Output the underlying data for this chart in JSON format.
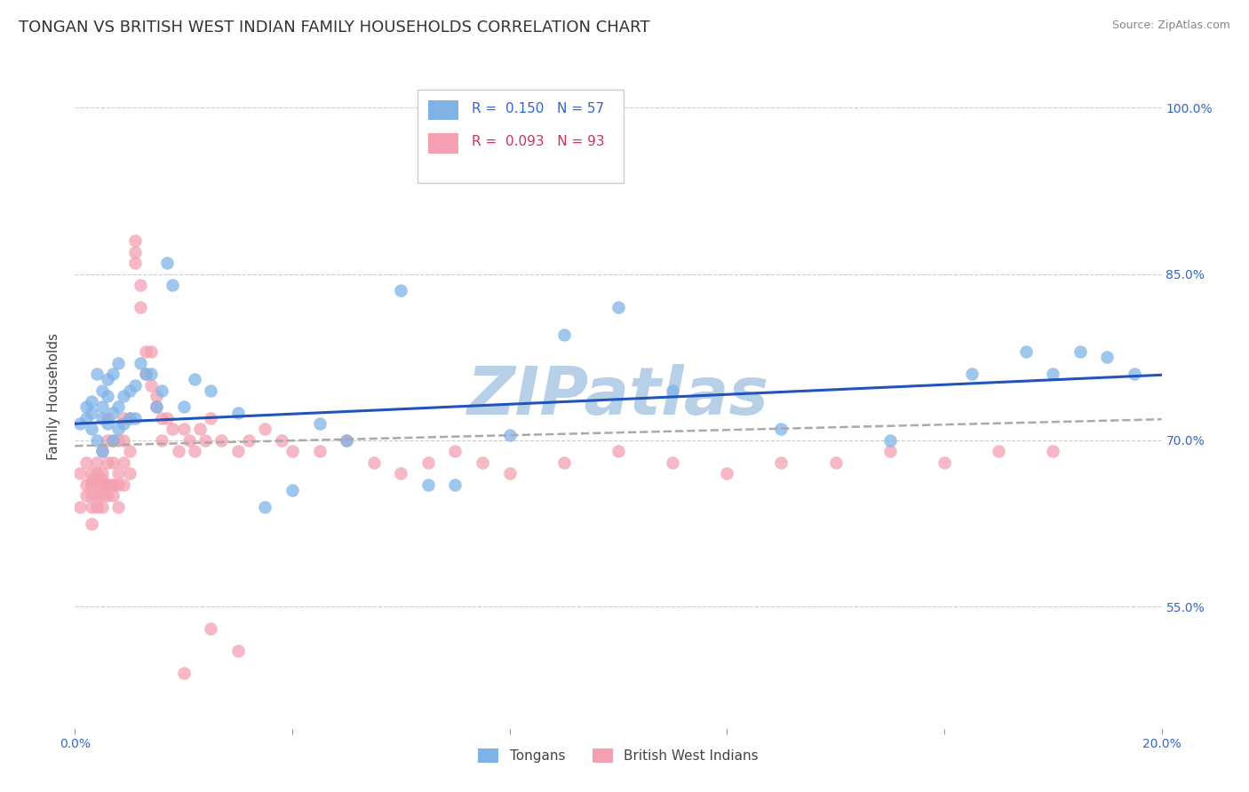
{
  "title": "TONGAN VS BRITISH WEST INDIAN FAMILY HOUSEHOLDS CORRELATION CHART",
  "source": "Source: ZipAtlas.com",
  "ylabel": "Family Households",
  "ytick_labels": [
    "55.0%",
    "70.0%",
    "85.0%",
    "100.0%"
  ],
  "ytick_values": [
    0.55,
    0.7,
    0.85,
    1.0
  ],
  "xlim": [
    0.0,
    0.2
  ],
  "ylim": [
    0.44,
    1.04
  ],
  "background_color": "#ffffff",
  "watermark_text": "ZIPatlas",
  "watermark_color": "#b8cfe8",
  "blue_color": "#7fb3e8",
  "pink_color": "#f4a0b0",
  "blue_line_color": "#2255bb",
  "pink_line_color": "#cc3355",
  "title_fontsize": 13,
  "axis_label_fontsize": 11,
  "tick_fontsize": 10,
  "legend_label_blue": "Tongans",
  "legend_label_pink": "British West Indians",
  "R_blue": 0.15,
  "N_blue": 57,
  "R_pink": 0.093,
  "N_pink": 93,
  "tongans_x": [
    0.001,
    0.002,
    0.002,
    0.003,
    0.003,
    0.003,
    0.004,
    0.004,
    0.005,
    0.005,
    0.005,
    0.005,
    0.006,
    0.006,
    0.006,
    0.007,
    0.007,
    0.007,
    0.008,
    0.008,
    0.008,
    0.009,
    0.009,
    0.01,
    0.01,
    0.011,
    0.011,
    0.012,
    0.013,
    0.014,
    0.015,
    0.016,
    0.017,
    0.018,
    0.02,
    0.022,
    0.025,
    0.03,
    0.035,
    0.04,
    0.045,
    0.05,
    0.06,
    0.065,
    0.07,
    0.08,
    0.09,
    0.1,
    0.11,
    0.13,
    0.15,
    0.165,
    0.175,
    0.18,
    0.185,
    0.19,
    0.195
  ],
  "tongans_y": [
    0.715,
    0.72,
    0.73,
    0.71,
    0.725,
    0.735,
    0.7,
    0.76,
    0.69,
    0.72,
    0.745,
    0.73,
    0.715,
    0.74,
    0.755,
    0.7,
    0.725,
    0.76,
    0.71,
    0.73,
    0.77,
    0.715,
    0.74,
    0.72,
    0.745,
    0.72,
    0.75,
    0.77,
    0.76,
    0.76,
    0.73,
    0.745,
    0.86,
    0.84,
    0.73,
    0.755,
    0.745,
    0.725,
    0.64,
    0.655,
    0.715,
    0.7,
    0.835,
    0.66,
    0.66,
    0.705,
    0.795,
    0.82,
    0.745,
    0.71,
    0.7,
    0.76,
    0.78,
    0.76,
    0.78,
    0.775,
    0.76
  ],
  "bwi_x": [
    0.001,
    0.001,
    0.002,
    0.002,
    0.002,
    0.003,
    0.003,
    0.003,
    0.003,
    0.003,
    0.003,
    0.004,
    0.004,
    0.004,
    0.004,
    0.004,
    0.005,
    0.005,
    0.005,
    0.005,
    0.005,
    0.005,
    0.006,
    0.006,
    0.006,
    0.006,
    0.006,
    0.006,
    0.007,
    0.007,
    0.007,
    0.007,
    0.007,
    0.008,
    0.008,
    0.008,
    0.008,
    0.009,
    0.009,
    0.009,
    0.009,
    0.01,
    0.01,
    0.01,
    0.011,
    0.011,
    0.011,
    0.012,
    0.012,
    0.013,
    0.013,
    0.014,
    0.014,
    0.015,
    0.015,
    0.016,
    0.016,
    0.017,
    0.018,
    0.019,
    0.02,
    0.021,
    0.022,
    0.023,
    0.024,
    0.025,
    0.027,
    0.03,
    0.032,
    0.035,
    0.038,
    0.04,
    0.045,
    0.05,
    0.055,
    0.06,
    0.065,
    0.07,
    0.075,
    0.08,
    0.09,
    0.1,
    0.11,
    0.12,
    0.13,
    0.14,
    0.15,
    0.16,
    0.17,
    0.18,
    0.03,
    0.025,
    0.02
  ],
  "bwi_y": [
    0.64,
    0.67,
    0.65,
    0.68,
    0.66,
    0.64,
    0.66,
    0.65,
    0.67,
    0.625,
    0.665,
    0.65,
    0.67,
    0.66,
    0.64,
    0.68,
    0.65,
    0.665,
    0.69,
    0.66,
    0.64,
    0.67,
    0.66,
    0.68,
    0.7,
    0.66,
    0.65,
    0.72,
    0.66,
    0.68,
    0.7,
    0.66,
    0.65,
    0.67,
    0.7,
    0.66,
    0.64,
    0.68,
    0.7,
    0.66,
    0.72,
    0.67,
    0.69,
    0.72,
    0.87,
    0.88,
    0.86,
    0.84,
    0.82,
    0.76,
    0.78,
    0.75,
    0.78,
    0.74,
    0.73,
    0.72,
    0.7,
    0.72,
    0.71,
    0.69,
    0.71,
    0.7,
    0.69,
    0.71,
    0.7,
    0.72,
    0.7,
    0.69,
    0.7,
    0.71,
    0.7,
    0.69,
    0.69,
    0.7,
    0.68,
    0.67,
    0.68,
    0.69,
    0.68,
    0.67,
    0.68,
    0.69,
    0.68,
    0.67,
    0.68,
    0.68,
    0.69,
    0.68,
    0.69,
    0.69,
    0.51,
    0.53,
    0.49
  ]
}
